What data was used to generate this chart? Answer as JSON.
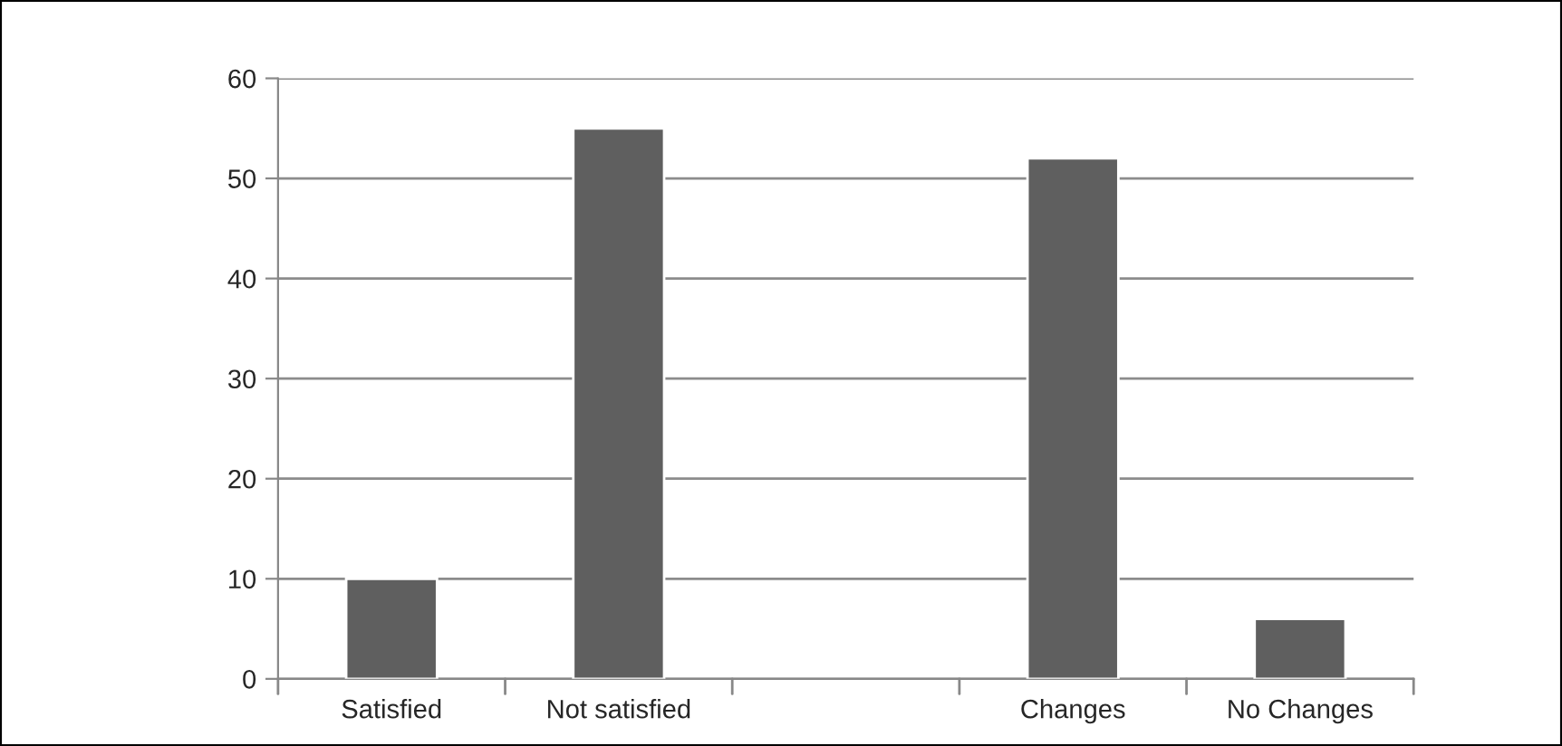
{
  "chart_data": {
    "type": "bar",
    "categories": [
      "Satisfied",
      "Not satisfied",
      null,
      "Changes",
      "No Changes"
    ],
    "values": [
      10,
      55,
      null,
      52,
      6
    ],
    "color": "#5f5f5f",
    "ylim": [
      0,
      60
    ],
    "yticks": [
      0,
      10,
      20,
      30,
      40,
      50,
      60
    ],
    "grid": "y",
    "legend": false
  }
}
